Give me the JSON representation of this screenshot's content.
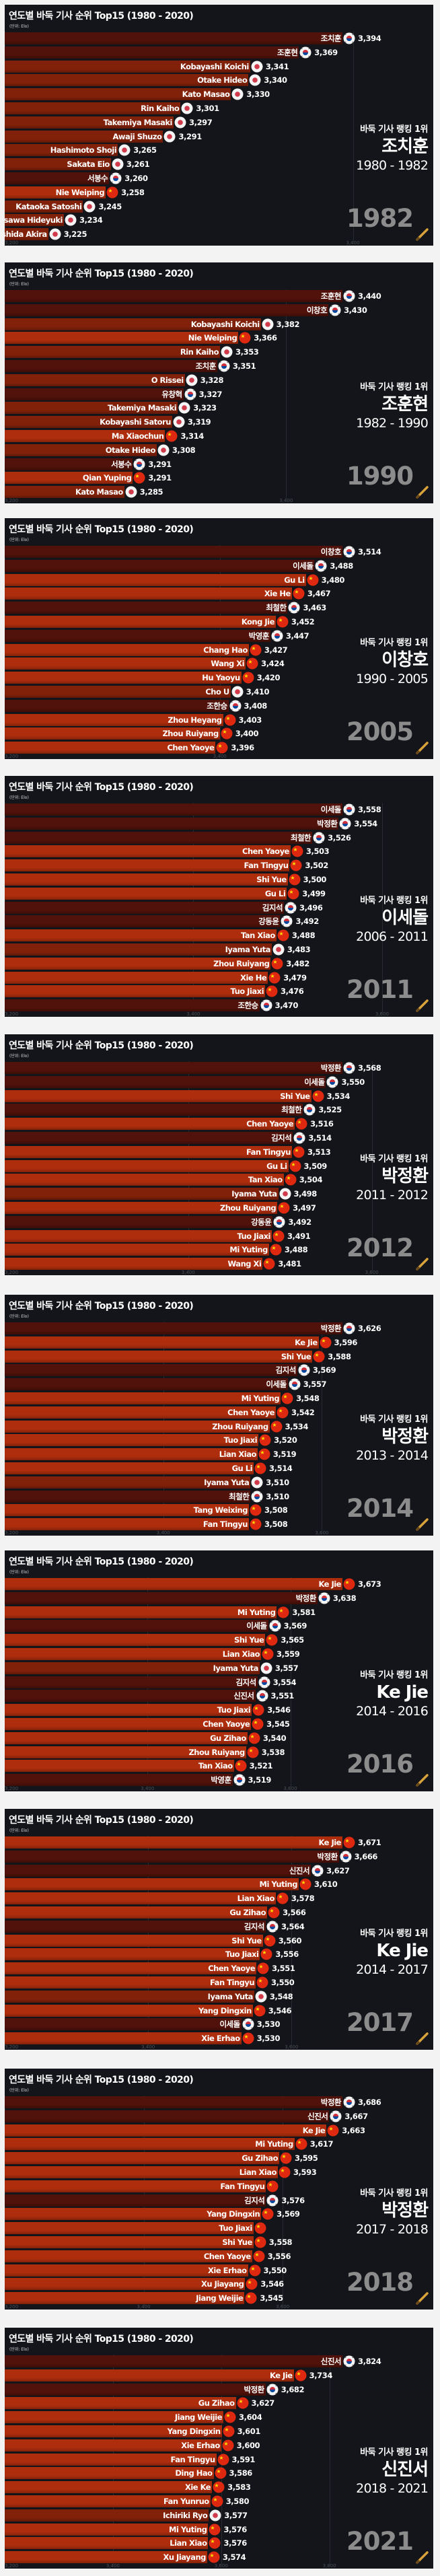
{
  "title": "연도별 바둑 기사 순위 Top15 (1980 - 2020)",
  "subtitle": "(단위: Elo)",
  "leader_label": "바둑 기사 랭킹 1위",
  "colors": {
    "KR": "#50120a",
    "CN": "#ad2d0d",
    "JP": "#82210a",
    "background": "#13151a",
    "year": "#8c8c8c"
  },
  "icons": {
    "KR": "korea-flag-icon",
    "CN": "china-flag-icon",
    "JP": "japan-flag-icon",
    "corner": "pencil-icon"
  },
  "chart_data": [
    {
      "type": "bar",
      "orientation": "horizontal",
      "year": "1982",
      "leader": "조치훈",
      "leader_years": "1980 - 1982",
      "xlim_min": 3200,
      "ticks": [
        "3,200",
        "3,400"
      ],
      "entries": [
        [
          "조치훈",
          "KR",
          3394
        ],
        [
          "조훈현",
          "KR",
          3369
        ],
        [
          "Kobayashi Koichi",
          "JP",
          3341
        ],
        [
          "Otake Hideo",
          "JP",
          3340
        ],
        [
          "Kato Masao",
          "JP",
          3330
        ],
        [
          "Rin Kaiho",
          "JP",
          3301
        ],
        [
          "Takemiya Masaki",
          "JP",
          3297
        ],
        [
          "Awaji Shuzo",
          "JP",
          3291
        ],
        [
          "Hashimoto Shoji",
          "JP",
          3265
        ],
        [
          "Sakata Eio",
          "JP",
          3261
        ],
        [
          "서봉수",
          "KR",
          3260
        ],
        [
          "Nie Weiping",
          "CN",
          3258
        ],
        [
          "Kataoka Satoshi",
          "JP",
          3245
        ],
        [
          "Fujisawa Hideyuki",
          "JP",
          3234
        ],
        [
          "Ishida Akira",
          "JP",
          3225
        ]
      ]
    },
    {
      "type": "bar",
      "orientation": "horizontal",
      "year": "1990",
      "leader": "조훈현",
      "leader_years": "1982 - 1990",
      "xlim_min": 3200,
      "ticks": [
        "3,200",
        "3,400"
      ],
      "entries": [
        [
          "조훈현",
          "KR",
          3440
        ],
        [
          "이창호",
          "KR",
          3430
        ],
        [
          "Kobayashi Koichi",
          "JP",
          3382
        ],
        [
          "Nie Weiping",
          "CN",
          3366
        ],
        [
          "Rin Kaiho",
          "JP",
          3353
        ],
        [
          "조치훈",
          "KR",
          3351
        ],
        [
          "O Rissei",
          "JP",
          3328
        ],
        [
          "유창혁",
          "KR",
          3327
        ],
        [
          "Takemiya Masaki",
          "JP",
          3323
        ],
        [
          "Kobayashi Satoru",
          "JP",
          3319
        ],
        [
          "Ma Xiaochun",
          "CN",
          3314
        ],
        [
          "Otake Hideo",
          "JP",
          3308
        ],
        [
          "서봉수",
          "KR",
          3291
        ],
        [
          "Qian Yuping",
          "CN",
          3291
        ],
        [
          "Kato Masao",
          "JP",
          3285
        ]
      ]
    },
    {
      "type": "bar",
      "orientation": "horizontal",
      "year": "2005",
      "leader": "이창호",
      "leader_years": "1990 - 2005",
      "xlim_min": 3200,
      "ticks": [
        "3,200",
        "3,400"
      ],
      "entries": [
        [
          "이창호",
          "KR",
          3514
        ],
        [
          "이세돌",
          "KR",
          3488
        ],
        [
          "Gu Li",
          "CN",
          3480
        ],
        [
          "Xie He",
          "CN",
          3467
        ],
        [
          "최철한",
          "KR",
          3463
        ],
        [
          "Kong Jie",
          "CN",
          3452
        ],
        [
          "박영훈",
          "KR",
          3447
        ],
        [
          "Chang Hao",
          "CN",
          3427
        ],
        [
          "Wang Xi",
          "CN",
          3424
        ],
        [
          "Hu Yaoyu",
          "CN",
          3420
        ],
        [
          "Cho U",
          "JP",
          3410
        ],
        [
          "조한승",
          "KR",
          3408
        ],
        [
          "Zhou Heyang",
          "CN",
          3403
        ],
        [
          "Zhou Ruiyang",
          "CN",
          3400
        ],
        [
          "Chen Yaoye",
          "CN",
          3396
        ]
      ]
    },
    {
      "type": "bar",
      "orientation": "horizontal",
      "year": "2011",
      "leader": "이세돌",
      "leader_years": "2006 - 2011",
      "xlim_min": 3200,
      "ticks": [
        "3,200",
        "3,400",
        "3,600"
      ],
      "entries": [
        [
          "이세돌",
          "KR",
          3558
        ],
        [
          "박정환",
          "KR",
          3554
        ],
        [
          "최철한",
          "KR",
          3526
        ],
        [
          "Chen Yaoye",
          "CN",
          3503
        ],
        [
          "Fan Tingyu",
          "CN",
          3502
        ],
        [
          "Shi Yue",
          "CN",
          3500
        ],
        [
          "Gu Li",
          "CN",
          3499
        ],
        [
          "김지석",
          "KR",
          3496
        ],
        [
          "강동윤",
          "KR",
          3492
        ],
        [
          "Tan Xiao",
          "CN",
          3488
        ],
        [
          "Iyama Yuta",
          "JP",
          3483
        ],
        [
          "Zhou Ruiyang",
          "CN",
          3482
        ],
        [
          "Xie He",
          "CN",
          3479
        ],
        [
          "Tuo Jiaxi",
          "CN",
          3476
        ],
        [
          "조한승",
          "KR",
          3470
        ]
      ]
    },
    {
      "type": "bar",
      "orientation": "horizontal",
      "year": "2012",
      "leader": "박정환",
      "leader_years": "2011 - 2012",
      "xlim_min": 3200,
      "ticks": [
        "3,200",
        "3,400",
        "3,600"
      ],
      "entries": [
        [
          "박정환",
          "KR",
          3568
        ],
        [
          "이세돌",
          "KR",
          3550
        ],
        [
          "Shi Yue",
          "CN",
          3534
        ],
        [
          "최철한",
          "KR",
          3525
        ],
        [
          "Chen Yaoye",
          "CN",
          3516
        ],
        [
          "김지석",
          "KR",
          3514
        ],
        [
          "Fan Tingyu",
          "CN",
          3513
        ],
        [
          "Gu Li",
          "CN",
          3509
        ],
        [
          "Tan Xiao",
          "CN",
          3504
        ],
        [
          "Iyama Yuta",
          "JP",
          3498
        ],
        [
          "Zhou Ruiyang",
          "CN",
          3497
        ],
        [
          "강동윤",
          "KR",
          3492
        ],
        [
          "Tuo Jiaxi",
          "CN",
          3491
        ],
        [
          "Mi Yuting",
          "CN",
          3488
        ],
        [
          "Wang Xi",
          "CN",
          3481
        ]
      ]
    },
    {
      "type": "bar",
      "orientation": "horizontal",
      "year": "2014",
      "leader": "박정환",
      "leader_years": "2013 - 2014",
      "xlim_min": 3200,
      "ticks": [
        "3,200",
        "3,400",
        "3,600"
      ],
      "entries": [
        [
          "박정환",
          "KR",
          3626
        ],
        [
          "Ke Jie",
          "CN",
          3596
        ],
        [
          "Shi Yue",
          "CN",
          3588
        ],
        [
          "김지석",
          "KR",
          3569
        ],
        [
          "이세돌",
          "KR",
          3557
        ],
        [
          "Mi Yuting",
          "CN",
          3548
        ],
        [
          "Chen Yaoye",
          "CN",
          3542
        ],
        [
          "Zhou Ruiyang",
          "CN",
          3534
        ],
        [
          "Tuo Jiaxi",
          "CN",
          3520
        ],
        [
          "Lian Xiao",
          "CN",
          3519
        ],
        [
          "Gu Li",
          "CN",
          3514
        ],
        [
          "Iyama Yuta",
          "JP",
          3510
        ],
        [
          "최철한",
          "KR",
          3510
        ],
        [
          "Tang Weixing",
          "CN",
          3508
        ],
        [
          "Fan Tingyu",
          "CN",
          3508
        ]
      ]
    },
    {
      "type": "bar",
      "orientation": "horizontal",
      "year": "2016",
      "leader": "Ke Jie",
      "leader_years": "2014 - 2016",
      "xlim_min": 3200,
      "ticks": [
        "3,200",
        "3,400",
        "3,600"
      ],
      "entries": [
        [
          "Ke Jie",
          "CN",
          3673
        ],
        [
          "박정환",
          "KR",
          3638
        ],
        [
          "Mi Yuting",
          "CN",
          3581
        ],
        [
          "이세돌",
          "KR",
          3569
        ],
        [
          "Shi Yue",
          "CN",
          3565
        ],
        [
          "Lian Xiao",
          "CN",
          3559
        ],
        [
          "Iyama Yuta",
          "JP",
          3557
        ],
        [
          "김지석",
          "KR",
          3554
        ],
        [
          "신진서",
          "KR",
          3551
        ],
        [
          "Tuo Jiaxi",
          "CN",
          3546
        ],
        [
          "Chen Yaoye",
          "CN",
          3545
        ],
        [
          "Gu Zihao",
          "CN",
          3540
        ],
        [
          "Zhou Ruiyang",
          "CN",
          3538
        ],
        [
          "Tan Xiao",
          "CN",
          3521
        ],
        [
          "박영훈",
          "KR",
          3519
        ]
      ]
    },
    {
      "type": "bar",
      "orientation": "horizontal",
      "year": "2017",
      "leader": "Ke Jie",
      "leader_years": "2014 - 2017",
      "xlim_min": 3200,
      "ticks": [
        "3,200",
        "3,400",
        "3,600"
      ],
      "entries": [
        [
          "Ke Jie",
          "CN",
          3671
        ],
        [
          "박정환",
          "KR",
          3666
        ],
        [
          "신진서",
          "KR",
          3627
        ],
        [
          "Mi Yuting",
          "CN",
          3610
        ],
        [
          "Lian Xiao",
          "CN",
          3578
        ],
        [
          "Gu Zihao",
          "CN",
          3566
        ],
        [
          "김지석",
          "KR",
          3564
        ],
        [
          "Shi Yue",
          "CN",
          3560
        ],
        [
          "Tuo Jiaxi",
          "CN",
          3556
        ],
        [
          "Chen Yaoye",
          "CN",
          3551
        ],
        [
          "Fan Tingyu",
          "CN",
          3550
        ],
        [
          "Iyama Yuta",
          "JP",
          3548
        ],
        [
          "Yang Dingxin",
          "CN",
          3546
        ],
        [
          "이세돌",
          "KR",
          3530
        ],
        [
          "Xie Erhao",
          "CN",
          3530
        ]
      ]
    },
    {
      "type": "bar",
      "orientation": "horizontal",
      "year": "2018",
      "leader": "박정환",
      "leader_years": "2017 - 2018",
      "xlim_min": 3200,
      "ticks": [
        "3,200",
        "3,400",
        "3,600"
      ],
      "entries": [
        [
          "박정환",
          "KR",
          3686
        ],
        [
          "신진서",
          "KR",
          3667
        ],
        [
          "Ke Jie",
          "CN",
          3663
        ],
        [
          "Mi Yuting",
          "CN",
          3617
        ],
        [
          "Gu Zihao",
          "CN",
          3595
        ],
        [
          "Lian Xiao",
          "CN",
          3593
        ],
        [
          "Fan Tingyu",
          "CN",
          null
        ],
        [
          "김지석",
          "KR",
          3576
        ],
        [
          "Yang Dingxin",
          "CN",
          3569
        ],
        [
          "Tuo Jiaxi",
          "CN",
          null
        ],
        [
          "Shi Yue",
          "CN",
          3558
        ],
        [
          "Chen Yaoye",
          "CN",
          3556
        ],
        [
          "Xie Erhao",
          "CN",
          3550
        ],
        [
          "Xu Jiayang",
          "CN",
          3546
        ],
        [
          "Jiang Weijie",
          "CN",
          3545
        ]
      ]
    },
    {
      "type": "bar",
      "orientation": "horizontal",
      "year": "2021",
      "leader": "신진서",
      "leader_years": "2018 - 2021",
      "xlim_min": 3200,
      "ticks": [
        "3,200",
        "3,400",
        "3,600",
        "3,800"
      ],
      "entries": [
        [
          "신진서",
          "KR",
          3824
        ],
        [
          "Ke Jie",
          "CN",
          3734
        ],
        [
          "박정환",
          "KR",
          3682
        ],
        [
          "Gu Zihao",
          "CN",
          3627
        ],
        [
          "Jiang Weijie",
          "CN",
          3604
        ],
        [
          "Yang Dingxin",
          "CN",
          3601
        ],
        [
          "Xie Erhao",
          "CN",
          3600
        ],
        [
          "Fan Tingyu",
          "CN",
          3591
        ],
        [
          "Ding Hao",
          "CN",
          3586
        ],
        [
          "Xie Ke",
          "CN",
          3583
        ],
        [
          "Fan Yunruo",
          "CN",
          3580
        ],
        [
          "Ichiriki Ryo",
          "JP",
          3577
        ],
        [
          "Mi Yuting",
          "CN",
          3576
        ],
        [
          "Lian Xiao",
          "CN",
          3576
        ],
        [
          "Xu Jiayang",
          "CN",
          3574
        ]
      ]
    }
  ]
}
